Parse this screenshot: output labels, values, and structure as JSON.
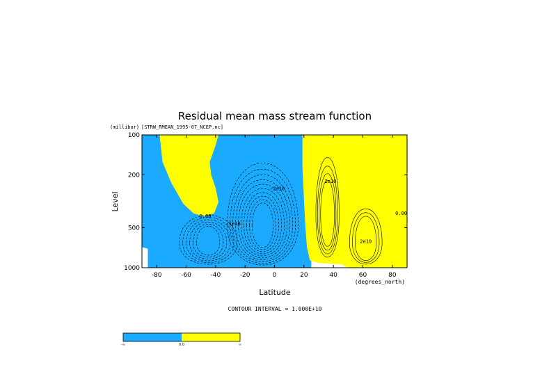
{
  "chart_data": {
    "type": "heatmap",
    "title": "Residual mean mass stream function",
    "source_label": "[STRW_RMEAN_1995-07_NCEP.nc]",
    "xlabel": "Latitude",
    "x_units": "(degrees_north)",
    "ylabel": "Level",
    "y_units": "(millibar)",
    "x_ticks": [
      -80,
      -60,
      -40,
      -20,
      0,
      20,
      40,
      60,
      80
    ],
    "x_tick_labels": [
      "-80",
      "-60",
      "-40",
      "-20",
      "0",
      "20",
      "40",
      "60",
      "80"
    ],
    "y_ticks": [
      100,
      200,
      500,
      1000
    ],
    "y_tick_labels": [
      "100",
      "200",
      "500",
      "1000"
    ],
    "xlim": [
      -90,
      90
    ],
    "ylim": [
      1000,
      100
    ],
    "y_scale": "log",
    "contour_interval_text": "CONTOUR INTERVAL = 1.000E+10",
    "contour_labels": [
      {
        "text": "0.00",
        "lat": -47,
        "lev": 420
      },
      {
        "text": "-1e10",
        "lat": -28,
        "lev": 480
      },
      {
        "text": "-2e10",
        "lat": 2,
        "lev": 260
      },
      {
        "text": "2e10",
        "lat": 38,
        "lev": 230
      },
      {
        "text": "2e10",
        "lat": 62,
        "lev": 650
      },
      {
        "text": "0.00",
        "lat": 86,
        "lev": 400
      }
    ],
    "colorbar": {
      "colors": [
        "#1aaaff",
        "#ffff00"
      ],
      "tick_labels": [
        "-∞",
        "0.0",
        "∞"
      ]
    },
    "fill_colors": {
      "negative": "#1aaaff",
      "positive": "#ffff00"
    },
    "grid": false,
    "legend": "none"
  }
}
